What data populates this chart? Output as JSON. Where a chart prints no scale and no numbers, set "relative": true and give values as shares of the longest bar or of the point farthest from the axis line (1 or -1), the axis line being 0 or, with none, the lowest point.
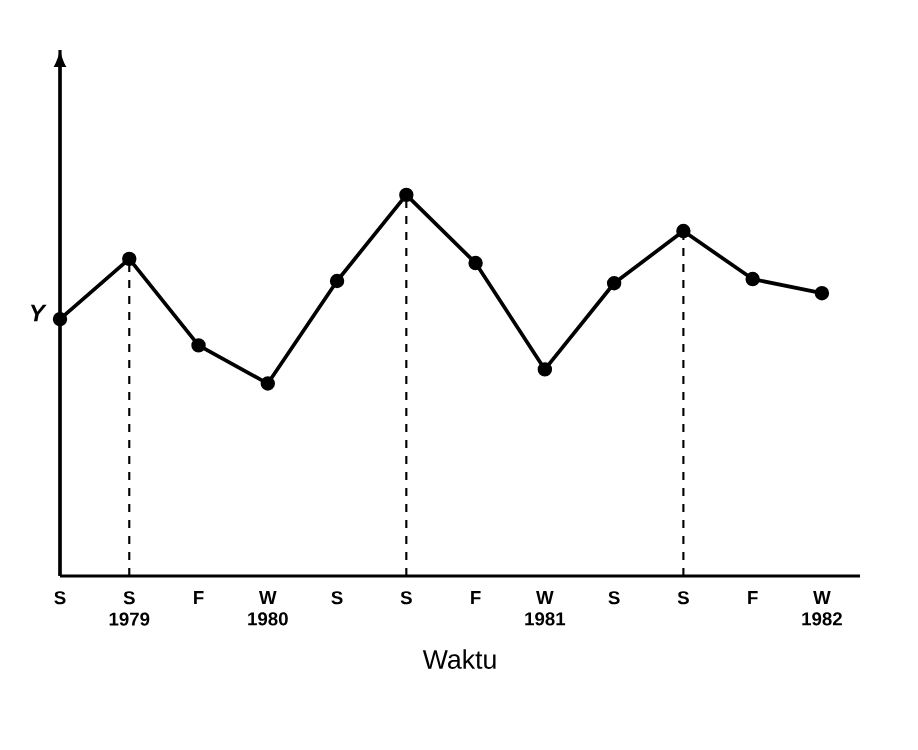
{
  "chart_data": {
    "type": "line",
    "relative": true,
    "ylabel": "Y",
    "xlabel": "Waktu",
    "categories": [
      "S",
      "S\n1979",
      "F",
      "W\n1980",
      "S",
      "S",
      "F",
      "W\n1981",
      "S",
      "S",
      "F",
      "W\n1982"
    ],
    "values": [
      0.674,
      0.832,
      0.605,
      0.505,
      0.774,
      1,
      0.821,
      0.542,
      0.768,
      0.905,
      0.779,
      0.742
    ],
    "color": "#000000",
    "marker": "circle",
    "line_style": "solid",
    "grid": "x"
  }
}
